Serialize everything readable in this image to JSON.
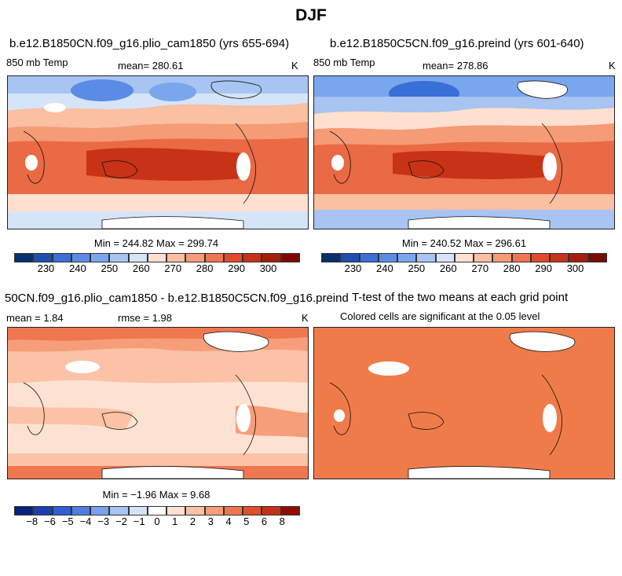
{
  "season": "DJF",
  "panels": [
    {
      "title": "b.e12.B1850CN.f09_g16.plio_cam1850 (yrs 655-694)",
      "left_label": "850 mb Temp",
      "mean_text": "mean= 280.61",
      "units": "K",
      "minmax_text": "Min = 244.82 Max = 299.74",
      "colorbar_ticks": [
        "230",
        "240",
        "250",
        "260",
        "270",
        "280",
        "290",
        "300"
      ]
    },
    {
      "title": "b.e12.B1850C5CN.f09_g16.preind (yrs 601-640)",
      "left_label": "850 mb Temp",
      "mean_text": "mean= 278.86",
      "units": "K",
      "minmax_text": "Min = 240.52 Max = 296.61",
      "colorbar_ticks": [
        "230",
        "240",
        "250",
        "260",
        "270",
        "280",
        "290",
        "300"
      ]
    },
    {
      "title": "50CN.f09_g16.plio_cam1850 - b.e12.B1850C5CN.f09_g16.preind",
      "mean_text": "mean =    1.84",
      "rmse_text": "rmse =    1.98",
      "units": "K",
      "minmax_text": "Min =  −1.96 Max =    9.68",
      "colorbar_ticks": [
        "−8",
        "−6",
        "−5",
        "−4",
        "−3",
        "−2",
        "−1",
        "0",
        "1",
        "2",
        "3",
        "4",
        "5",
        "6",
        "8"
      ]
    },
    {
      "title": "T-test of the two means at each grid point",
      "subtitle": "Colored cells are significant at the 0.05 level"
    }
  ],
  "colors": {
    "abs_scale": [
      "#08306b",
      "#1f4fb0",
      "#3a6fd8",
      "#5a8ce6",
      "#7aa6ee",
      "#a7c4f2",
      "#d6e4f8",
      "#fde0cf",
      "#fbbfa1",
      "#f59b76",
      "#ef7450",
      "#e24a2b",
      "#c83217",
      "#a51e0c",
      "#7a0b04"
    ],
    "diff_scale": [
      "#0a1f7a",
      "#1d3fae",
      "#2f5fd0",
      "#4e7fe0",
      "#7aa1ec",
      "#a8c3f4",
      "#d5e3fa",
      "#ffffff",
      "#fde2d3",
      "#fbc2a6",
      "#f69e7a",
      "#ef7750",
      "#e0502c",
      "#c43116",
      "#8e0e04"
    ],
    "ttest_fill": "#f07b4a",
    "land_mask": "#ffffff"
  }
}
